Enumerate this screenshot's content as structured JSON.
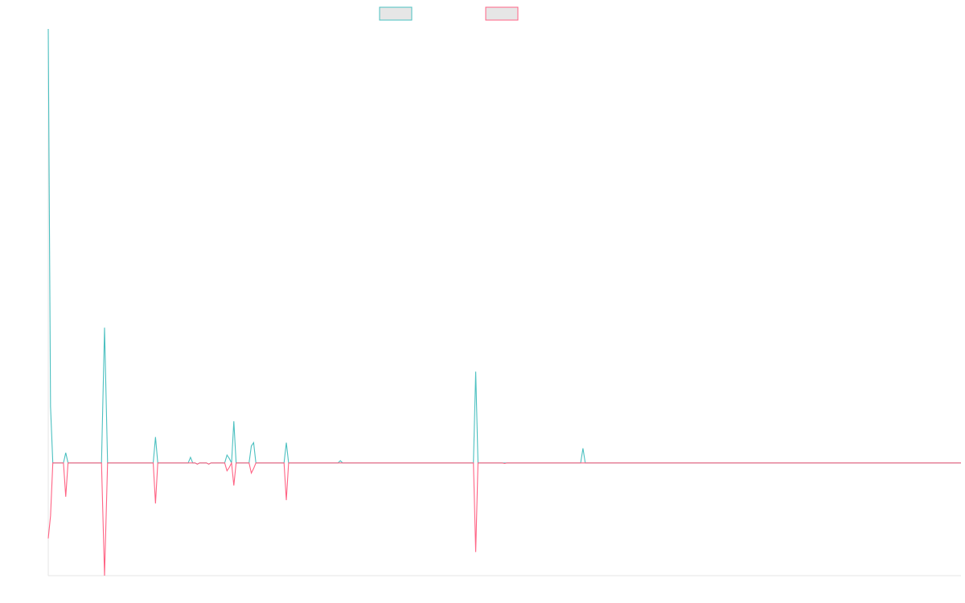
{
  "chart_data": {
    "type": "line",
    "xlim": [
      0,
      1200
    ],
    "ylim": [
      -100,
      385
    ],
    "grid": false,
    "legend_position": "top-center",
    "series": [
      {
        "color": "#4bc0c0",
        "legend_fill": "#e6e6e6",
        "points": [
          [
            0,
            385
          ],
          [
            3,
            50
          ],
          [
            6,
            0
          ],
          [
            20,
            0
          ],
          [
            23,
            9
          ],
          [
            26,
            0
          ],
          [
            70,
            0
          ],
          [
            74,
            120
          ],
          [
            78,
            0
          ],
          [
            138,
            0
          ],
          [
            141,
            23
          ],
          [
            144,
            0
          ],
          [
            184,
            0
          ],
          [
            187,
            5
          ],
          [
            190,
            0
          ],
          [
            193,
            0
          ],
          [
            196,
            -1
          ],
          [
            199,
            0
          ],
          [
            208,
            0
          ],
          [
            211,
            -1
          ],
          [
            214,
            0
          ],
          [
            232,
            0
          ],
          [
            235,
            7
          ],
          [
            238,
            4
          ],
          [
            241,
            0
          ],
          [
            244,
            37
          ],
          [
            247,
            0
          ],
          [
            264,
            0
          ],
          [
            267,
            15
          ],
          [
            270,
            18
          ],
          [
            273,
            0
          ],
          [
            310,
            0
          ],
          [
            313,
            18
          ],
          [
            316,
            0
          ],
          [
            381,
            0
          ],
          [
            384,
            2
          ],
          [
            387,
            0
          ],
          [
            559,
            0
          ],
          [
            562,
            81
          ],
          [
            565,
            0
          ],
          [
            700,
            0
          ],
          [
            703,
            13
          ],
          [
            706,
            0
          ],
          [
            1200,
            0
          ]
        ]
      },
      {
        "color": "#ff6384",
        "legend_fill": "#e6e6e6",
        "points": [
          [
            0,
            -67
          ],
          [
            3,
            -47
          ],
          [
            6,
            0
          ],
          [
            20,
            0
          ],
          [
            23,
            -30
          ],
          [
            26,
            0
          ],
          [
            70,
            0
          ],
          [
            74,
            -100
          ],
          [
            78,
            0
          ],
          [
            138,
            0
          ],
          [
            141,
            -36
          ],
          [
            144,
            0
          ],
          [
            184,
            0
          ],
          [
            187,
            0
          ],
          [
            190,
            0
          ],
          [
            193,
            0
          ],
          [
            196,
            -1
          ],
          [
            199,
            0
          ],
          [
            208,
            0
          ],
          [
            211,
            -1
          ],
          [
            214,
            0
          ],
          [
            232,
            0
          ],
          [
            235,
            -7
          ],
          [
            238,
            -4
          ],
          [
            241,
            0
          ],
          [
            244,
            -20
          ],
          [
            247,
            0
          ],
          [
            264,
            0
          ],
          [
            267,
            -9
          ],
          [
            270,
            -5
          ],
          [
            273,
            0
          ],
          [
            310,
            0
          ],
          [
            313,
            -33
          ],
          [
            316,
            0
          ],
          [
            381,
            0
          ],
          [
            384,
            0
          ],
          [
            387,
            0
          ],
          [
            559,
            0
          ],
          [
            562,
            -79
          ],
          [
            565,
            0
          ],
          [
            597,
            0
          ],
          [
            600,
            -0.5
          ],
          [
            603,
            0
          ],
          [
            1200,
            0
          ]
        ]
      }
    ]
  }
}
